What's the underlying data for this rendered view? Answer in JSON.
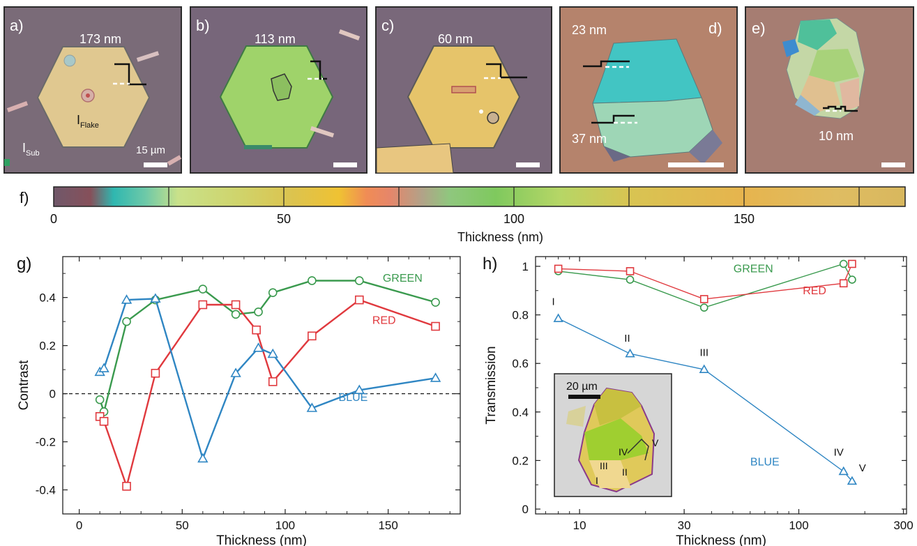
{
  "micro": {
    "a": {
      "label": "a)",
      "thickness": "173 nm",
      "i_flake": "I",
      "i_flake_sub": "Flake",
      "i_sub": "I",
      "i_sub_sub": "Sub",
      "scale": "15 µm"
    },
    "b": {
      "label": "b)",
      "thickness": "113 nm"
    },
    "c": {
      "label": "c)",
      "thickness": "60 nm"
    },
    "d": {
      "label": "d)",
      "thickness_top": "23 nm",
      "thickness_bottom": "37 nm"
    },
    "e": {
      "label": "e)",
      "thickness": "10 nm"
    }
  },
  "colors": {
    "substrate_purple": "#7a6b78",
    "flake_yellow": "#e8c77a",
    "flake_green": "#9dd36a",
    "flake_cyan": "#3cc2c2",
    "green": "#3a9a4e",
    "red": "#e0393e",
    "blue": "#2f86c3"
  },
  "chart_data": [
    {
      "id": "f",
      "type": "colorbar",
      "label": "f)",
      "xlabel": "Thickness (nm)",
      "xlim": [
        0,
        185
      ],
      "ticks": [
        0,
        50,
        100,
        150
      ],
      "divider_positions": [
        25,
        50,
        75,
        100,
        125,
        150,
        175
      ],
      "stops": [
        {
          "t": 0,
          "c": "#70586a"
        },
        {
          "t": 8,
          "c": "#86505a"
        },
        {
          "t": 13,
          "c": "#2fb7b0"
        },
        {
          "t": 20,
          "c": "#6ec9a8"
        },
        {
          "t": 27,
          "c": "#c9e18a"
        },
        {
          "t": 40,
          "c": "#cfd46c"
        },
        {
          "t": 52,
          "c": "#dcc34e"
        },
        {
          "t": 62,
          "c": "#efc233"
        },
        {
          "t": 68,
          "c": "#f08c55"
        },
        {
          "t": 73,
          "c": "#e6866a"
        },
        {
          "t": 80,
          "c": "#b2a288"
        },
        {
          "t": 86,
          "c": "#8fc77e"
        },
        {
          "t": 96,
          "c": "#7fc95e"
        },
        {
          "t": 110,
          "c": "#b6d666"
        },
        {
          "t": 125,
          "c": "#d8c452"
        },
        {
          "t": 150,
          "c": "#e6b44e"
        },
        {
          "t": 170,
          "c": "#dfbd62"
        },
        {
          "t": 185,
          "c": "#d8b75e"
        }
      ]
    },
    {
      "id": "g",
      "type": "line",
      "label": "g)",
      "xlabel": "Thickness (nm)",
      "ylabel": "Contrast",
      "xlim": [
        -8,
        185
      ],
      "ylim": [
        -0.5,
        0.57
      ],
      "xticks": [
        0,
        50,
        100,
        150
      ],
      "yticks": [
        -0.4,
        -0.2,
        0,
        0.2,
        0.4
      ],
      "yticklabels": [
        "-0.4",
        "-0.2",
        "0",
        "0.2",
        "0.4"
      ],
      "zero_line": true,
      "series": [
        {
          "name": "GREEN",
          "color": "#3a9a4e",
          "marker": "circle",
          "x": [
            10,
            12,
            23,
            37,
            60,
            76,
            87,
            94,
            113,
            136,
            173
          ],
          "y": [
            -0.025,
            -0.075,
            0.3,
            0.39,
            0.435,
            0.33,
            0.34,
            0.42,
            0.47,
            0.47,
            0.38
          ]
        },
        {
          "name": "RED",
          "color": "#e0393e",
          "marker": "square",
          "x": [
            10,
            12,
            23,
            37,
            60,
            76,
            86,
            94,
            113,
            136,
            173
          ],
          "y": [
            -0.095,
            -0.115,
            -0.385,
            0.085,
            0.37,
            0.37,
            0.265,
            0.05,
            0.24,
            0.39,
            0.28
          ]
        },
        {
          "name": "BLUE",
          "color": "#2f86c3",
          "marker": "triangle",
          "x": [
            10,
            12,
            23,
            37,
            60,
            76,
            87,
            94,
            113,
            136,
            173
          ],
          "y": [
            0.09,
            0.105,
            0.39,
            0.395,
            -0.27,
            0.085,
            0.19,
            0.165,
            -0.06,
            0.015,
            0.065
          ]
        }
      ],
      "series_labels": [
        {
          "text": "GREEN",
          "x": 157,
          "y": 0.465
        },
        {
          "text": "RED",
          "x": 148,
          "y": 0.29
        },
        {
          "text": "BLUE",
          "x": 133,
          "y": -0.03
        }
      ]
    },
    {
      "id": "h",
      "type": "line",
      "label": "h)",
      "xlabel": "Thickness (nm)",
      "ylabel": "Transmission",
      "xscale": "log",
      "xlim": [
        6.3,
        310
      ],
      "ylim": [
        -0.02,
        1.04
      ],
      "xticks": [
        10,
        30,
        100,
        300
      ],
      "yticks": [
        0,
        0.2,
        0.4,
        0.6,
        0.8,
        1
      ],
      "yticklabels": [
        "0",
        "0.2",
        "0.4",
        "0.6",
        "0.8",
        "1"
      ],
      "series": [
        {
          "name": "GREEN",
          "color": "#3a9a4e",
          "marker": "circle",
          "x": [
            8,
            17,
            37,
            160,
            175
          ],
          "y": [
            0.98,
            0.945,
            0.83,
            1.01,
            0.945
          ]
        },
        {
          "name": "RED",
          "color": "#e0393e",
          "marker": "square",
          "x": [
            8,
            17,
            37,
            160,
            175
          ],
          "y": [
            0.99,
            0.98,
            0.865,
            0.93,
            1.01
          ]
        },
        {
          "name": "BLUE",
          "color": "#2f86c3",
          "marker": "triangle",
          "x": [
            8,
            17,
            37,
            160,
            175
          ],
          "y": [
            0.785,
            0.64,
            0.575,
            0.155,
            0.115
          ]
        }
      ],
      "series_labels": [
        {
          "text": "GREEN",
          "x": 62,
          "y": 0.975
        },
        {
          "text": "RED",
          "x": 118,
          "y": 0.885
        },
        {
          "text": "BLUE",
          "x": 70,
          "y": 0.18
        }
      ],
      "point_labels": [
        {
          "text": "I",
          "x": 7.6,
          "y": 0.84
        },
        {
          "text": "II",
          "x": 16.5,
          "y": 0.69
        },
        {
          "text": "III",
          "x": 37,
          "y": 0.63
        },
        {
          "text": "IV",
          "x": 152,
          "y": 0.22
        },
        {
          "text": "V",
          "x": 195,
          "y": 0.155
        }
      ],
      "inset": {
        "scale": "20 µm",
        "regions": [
          "I",
          "II",
          "III",
          "IV",
          "V"
        ]
      }
    }
  ]
}
